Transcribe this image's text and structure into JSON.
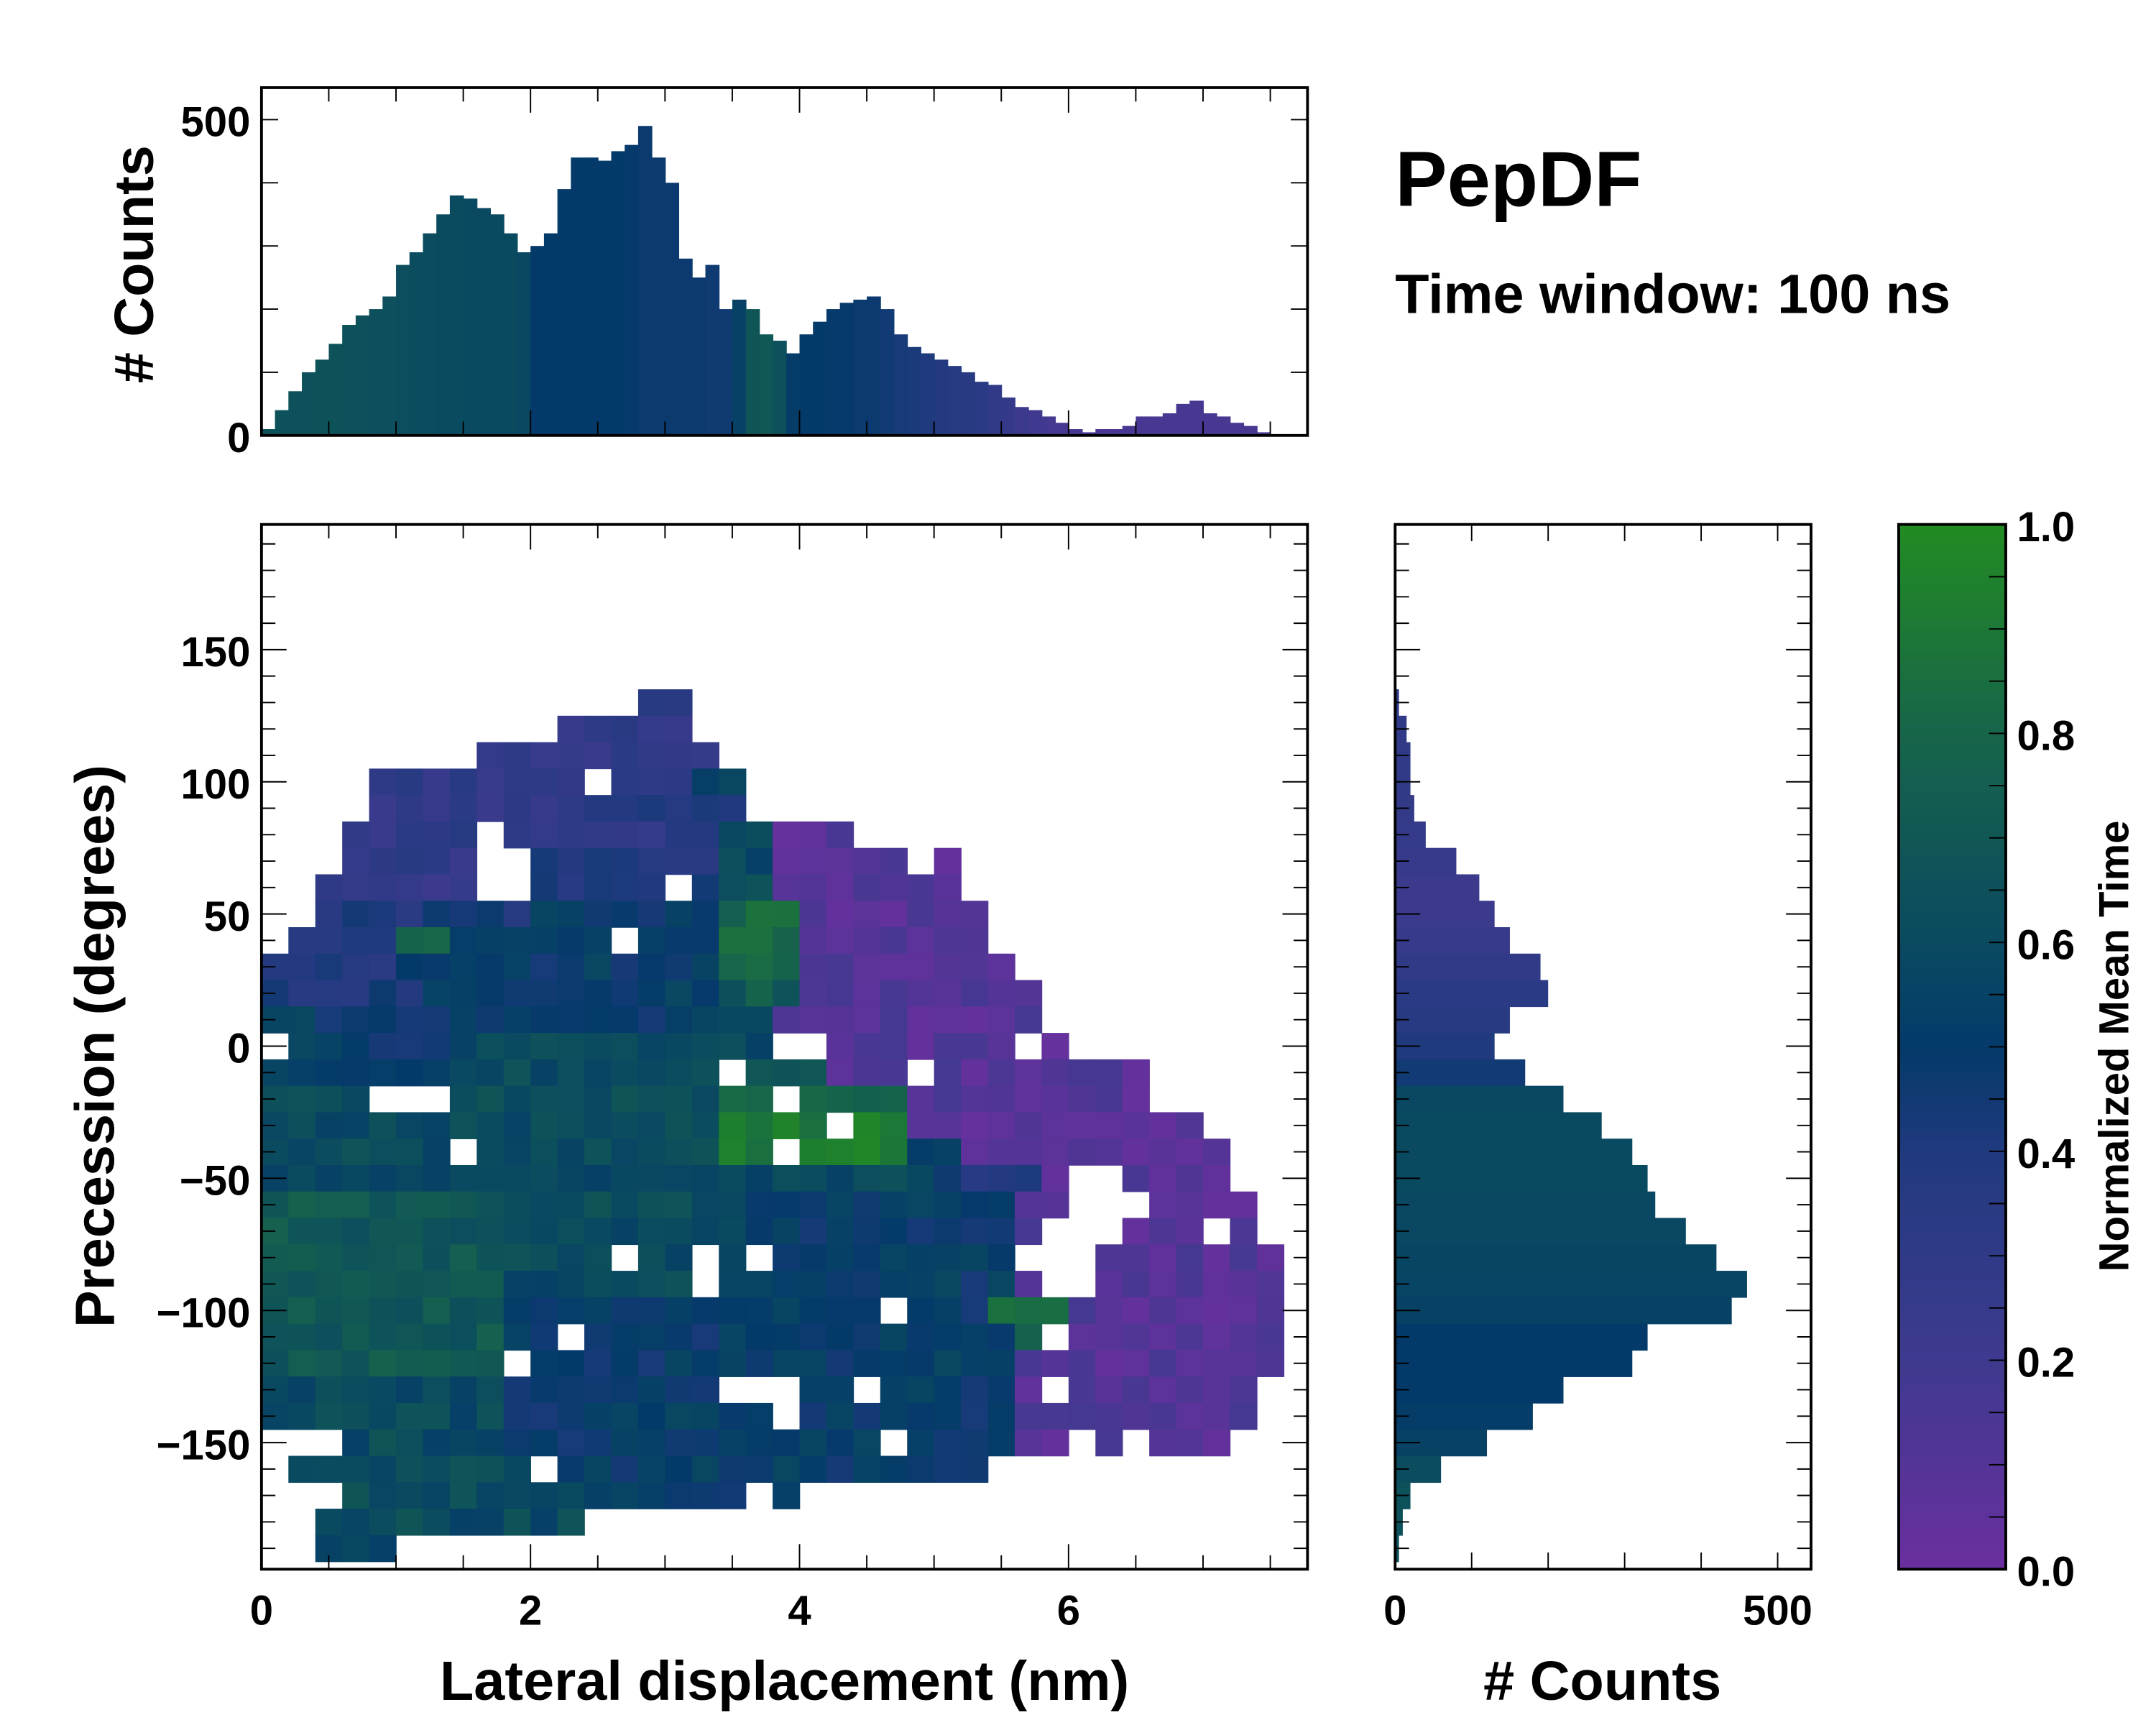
{
  "title": "PepDF",
  "subtitle": "Time window: 100 ns",
  "colors": {
    "colormap": [
      "#6a2f9f",
      "#3f3a8f",
      "#203a7e",
      "#043a6a",
      "#0a4a60",
      "#17654a",
      "#228b22"
    ],
    "colormap_positions": [
      0,
      0.2,
      0.4,
      0.5,
      0.6,
      0.8,
      1.0
    ]
  },
  "chart_data": [
    {
      "name": "top-histogram",
      "type": "bar",
      "ylabel": "# Counts",
      "xlim": [
        0,
        7.78
      ],
      "ylim": [
        0,
        550
      ],
      "yticks": [
        "0",
        "500"
      ],
      "bin_width": 0.1,
      "x": [
        0.0,
        0.1,
        0.2,
        0.3,
        0.4,
        0.5,
        0.6,
        0.7,
        0.8,
        0.9,
        1.0,
        1.1,
        1.2,
        1.3,
        1.4,
        1.5,
        1.6,
        1.7,
        1.8,
        1.9,
        2.0,
        2.1,
        2.2,
        2.3,
        2.4,
        2.5,
        2.6,
        2.7,
        2.8,
        2.9,
        3.0,
        3.1,
        3.2,
        3.3,
        3.4,
        3.5,
        3.6,
        3.7,
        3.8,
        3.9,
        4.0,
        4.1,
        4.2,
        4.3,
        4.4,
        4.5,
        4.6,
        4.7,
        4.8,
        4.9,
        5.0,
        5.1,
        5.2,
        5.3,
        5.4,
        5.5,
        5.6,
        5.7,
        5.8,
        5.9,
        6.0,
        6.1,
        6.2,
        6.3,
        6.4,
        6.5,
        6.6,
        6.7,
        6.8,
        6.9,
        7.0,
        7.1,
        7.2,
        7.3,
        7.4,
        7.5,
        7.6
      ],
      "values": [
        10,
        40,
        70,
        100,
        120,
        145,
        175,
        190,
        200,
        220,
        270,
        290,
        320,
        350,
        380,
        375,
        360,
        350,
        320,
        290,
        300,
        320,
        390,
        440,
        440,
        435,
        450,
        460,
        490,
        440,
        400,
        280,
        250,
        270,
        200,
        215,
        200,
        160,
        150,
        130,
        160,
        180,
        200,
        210,
        215,
        220,
        200,
        160,
        140,
        130,
        120,
        110,
        100,
        85,
        80,
        60,
        45,
        40,
        30,
        20,
        10,
        5,
        10,
        10,
        15,
        30,
        30,
        35,
        50,
        55,
        35,
        30,
        20,
        15,
        5,
        2,
        0
      ],
      "mean_time": [
        0.65,
        0.65,
        0.65,
        0.65,
        0.66,
        0.66,
        0.65,
        0.65,
        0.64,
        0.64,
        0.63,
        0.62,
        0.62,
        0.61,
        0.61,
        0.6,
        0.6,
        0.6,
        0.6,
        0.58,
        0.5,
        0.5,
        0.5,
        0.5,
        0.5,
        0.5,
        0.5,
        0.49,
        0.48,
        0.48,
        0.48,
        0.47,
        0.47,
        0.46,
        0.46,
        0.55,
        0.68,
        0.7,
        0.65,
        0.52,
        0.5,
        0.5,
        0.49,
        0.49,
        0.48,
        0.47,
        0.45,
        0.43,
        0.42,
        0.4,
        0.38,
        0.37,
        0.35,
        0.33,
        0.3,
        0.27,
        0.22,
        0.2,
        0.18,
        0.17,
        0.16,
        0.15,
        0.15,
        0.15,
        0.15,
        0.15,
        0.16,
        0.16,
        0.16,
        0.16,
        0.16,
        0.16,
        0.16,
        0.16,
        0.16,
        0.16,
        0.16
      ]
    },
    {
      "name": "main-heatmap",
      "type": "heatmap",
      "xlabel": "Lateral displacement (nm)",
      "ylabel": "Precession (degrees)",
      "xlim": [
        0,
        7.78
      ],
      "ylim": [
        -198,
        197
      ],
      "xticks": [
        0,
        2,
        4,
        6
      ],
      "yticks": [
        150,
        100,
        50,
        0,
        -50,
        -100,
        -150
      ],
      "ytick_labels": [
        "150",
        "100",
        "50",
        "0",
        "−50",
        "−100",
        "−150"
      ],
      "cell": {
        "dx": 0.2,
        "dy": 10
      },
      "value_scale": 0.1,
      "rows": [
        {
          "y": 130,
          "seg": [
            [
              2.8,
              3.2,
              3
            ]
          ]
        },
        {
          "y": 120,
          "seg": [
            [
              2.2,
              3.2,
              3
            ]
          ]
        },
        {
          "y": 110,
          "seg": [
            [
              1.6,
              3.4,
              3
            ]
          ]
        },
        {
          "y": 100,
          "seg": [
            [
              0.8,
              3.2,
              3
            ],
            [
              3.2,
              3.6,
              5
            ]
          ]
        },
        {
          "y": 90,
          "seg": [
            [
              0.8,
              2.6,
              3
            ],
            [
              2.6,
              3.6,
              4
            ]
          ]
        },
        {
          "y": 80,
          "seg": [
            [
              0.6,
              3.4,
              3
            ],
            [
              3.4,
              3.8,
              6
            ],
            [
              3.8,
              4.4,
              1
            ]
          ]
        },
        {
          "y": 70,
          "seg": [
            [
              0.6,
              1.6,
              3
            ],
            [
              2.0,
              3.4,
              4
            ],
            [
              3.4,
              3.8,
              6
            ],
            [
              3.8,
              5.2,
              1
            ]
          ]
        },
        {
          "y": 60,
          "seg": [
            [
              0.4,
              1.6,
              3
            ],
            [
              2.0,
              3.4,
              4
            ],
            [
              3.4,
              3.8,
              7
            ],
            [
              3.8,
              5.2,
              1
            ]
          ]
        },
        {
          "y": 50,
          "seg": [
            [
              0.4,
              2.0,
              4
            ],
            [
              2.0,
              3.4,
              5
            ],
            [
              3.4,
              4.0,
              8
            ],
            [
              4.0,
              5.4,
              1
            ]
          ]
        },
        {
          "y": 40,
          "seg": [
            [
              0.2,
              1.0,
              4
            ],
            [
              1.0,
              1.4,
              8
            ],
            [
              1.4,
              3.4,
              5
            ],
            [
              3.4,
              4.0,
              8
            ],
            [
              4.0,
              5.4,
              1
            ]
          ]
        },
        {
          "y": 30,
          "seg": [
            [
              0.0,
              1.0,
              4
            ],
            [
              1.0,
              3.4,
              5
            ],
            [
              3.4,
              4.0,
              8
            ],
            [
              4.0,
              5.6,
              1
            ]
          ]
        },
        {
          "y": 20,
          "seg": [
            [
              0.0,
              1.2,
              4
            ],
            [
              1.2,
              3.4,
              5
            ],
            [
              3.4,
              4.0,
              7
            ],
            [
              4.0,
              5.8,
              1
            ]
          ]
        },
        {
          "y": 10,
          "seg": [
            [
              0.0,
              3.4,
              5
            ],
            [
              3.4,
              3.8,
              6
            ],
            [
              3.8,
              5.8,
              1
            ]
          ]
        },
        {
          "y": 0,
          "seg": [
            [
              0.0,
              1.6,
              5
            ],
            [
              1.6,
              3.8,
              6
            ],
            [
              4.2,
              6.0,
              1
            ]
          ]
        },
        {
          "y": -10,
          "seg": [
            [
              0.0,
              1.4,
              5
            ],
            [
              1.4,
              3.4,
              6
            ],
            [
              3.4,
              4.2,
              7
            ],
            [
              4.2,
              6.6,
              1
            ]
          ]
        },
        {
          "y": -20,
          "seg": [
            [
              0.0,
              3.4,
              6
            ],
            [
              3.4,
              4.8,
              8
            ],
            [
              4.8,
              6.6,
              1
            ]
          ]
        },
        {
          "y": -30,
          "seg": [
            [
              0.0,
              3.4,
              6
            ],
            [
              3.4,
              4.8,
              9
            ],
            [
              4.8,
              7.0,
              1
            ]
          ]
        },
        {
          "y": -40,
          "seg": [
            [
              0.0,
              3.4,
              6
            ],
            [
              3.4,
              4.8,
              9
            ],
            [
              4.8,
              5.2,
              5
            ],
            [
              5.2,
              7.2,
              1
            ]
          ]
        },
        {
          "y": -50,
          "seg": [
            [
              0.0,
              5.0,
              6
            ],
            [
              5.0,
              5.8,
              4
            ],
            [
              5.8,
              6.0,
              1
            ],
            [
              6.4,
              7.2,
              1
            ]
          ]
        },
        {
          "y": -60,
          "seg": [
            [
              0.0,
              1.8,
              7
            ],
            [
              1.8,
              3.6,
              6
            ],
            [
              3.6,
              5.6,
              5
            ],
            [
              5.6,
              6.0,
              1
            ],
            [
              6.4,
              7.4,
              1
            ]
          ]
        },
        {
          "y": -70,
          "seg": [
            [
              0.0,
              1.8,
              7
            ],
            [
              1.8,
              3.6,
              6
            ],
            [
              3.6,
              5.6,
              5
            ],
            [
              5.6,
              5.8,
              1
            ],
            [
              6.4,
              7.4,
              1
            ]
          ]
        },
        {
          "y": -80,
          "seg": [
            [
              0.0,
              1.8,
              7
            ],
            [
              1.8,
              3.6,
              6
            ],
            [
              3.6,
              5.6,
              5
            ],
            [
              6.2,
              7.6,
              1
            ]
          ]
        },
        {
          "y": -90,
          "seg": [
            [
              0.0,
              1.8,
              7
            ],
            [
              1.8,
              3.6,
              6
            ],
            [
              3.6,
              5.6,
              5
            ],
            [
              5.6,
              5.8,
              1
            ],
            [
              6.2,
              7.6,
              1
            ]
          ]
        },
        {
          "y": -100,
          "seg": [
            [
              0.0,
              1.8,
              7
            ],
            [
              1.8,
              5.4,
              5
            ],
            [
              5.4,
              6.0,
              9
            ],
            [
              6.0,
              7.6,
              1
            ]
          ]
        },
        {
          "y": -110,
          "seg": [
            [
              0.0,
              1.8,
              7
            ],
            [
              1.8,
              5.6,
              5
            ],
            [
              5.6,
              6.0,
              8
            ],
            [
              6.0,
              7.6,
              1
            ]
          ]
        },
        {
          "y": -120,
          "seg": [
            [
              0.0,
              1.8,
              7
            ],
            [
              1.8,
              5.6,
              5
            ],
            [
              5.6,
              7.6,
              1
            ]
          ]
        },
        {
          "y": -130,
          "seg": [
            [
              0.0,
              1.8,
              6
            ],
            [
              1.8,
              5.6,
              5
            ],
            [
              5.6,
              7.4,
              1
            ]
          ]
        },
        {
          "y": -140,
          "seg": [
            [
              0.0,
              1.8,
              6
            ],
            [
              1.8,
              5.6,
              5
            ],
            [
              5.6,
              7.4,
              1
            ]
          ]
        },
        {
          "y": -150,
          "seg": [
            [
              0.2,
              1.8,
              6
            ],
            [
              1.8,
              5.6,
              5
            ],
            [
              5.6,
              6.0,
              1
            ],
            [
              6.2,
              7.2,
              1
            ]
          ]
        },
        {
          "y": -160,
          "seg": [
            [
              0.2,
              2.0,
              6
            ],
            [
              2.0,
              5.4,
              5
            ]
          ]
        },
        {
          "y": -170,
          "seg": [
            [
              0.4,
              2.4,
              6
            ],
            [
              2.4,
              4.0,
              5
            ]
          ]
        },
        {
          "y": -180,
          "seg": [
            [
              0.4,
              2.4,
              6
            ]
          ]
        },
        {
          "y": -190,
          "seg": [
            [
              0.4,
              1.0,
              6
            ]
          ]
        }
      ]
    },
    {
      "name": "right-histogram",
      "type": "bar",
      "orientation": "horizontal",
      "xlabel": "# Counts",
      "xlim": [
        0,
        544
      ],
      "xticks": [
        "0",
        "500"
      ],
      "bin_width": 10,
      "y": [
        130,
        120,
        110,
        100,
        90,
        80,
        70,
        60,
        50,
        40,
        30,
        20,
        10,
        0,
        -10,
        -20,
        -30,
        -40,
        -50,
        -60,
        -70,
        -80,
        -90,
        -100,
        -110,
        -120,
        -130,
        -140,
        -150,
        -160,
        -170,
        -180,
        -190
      ],
      "values": [
        5,
        15,
        20,
        20,
        25,
        40,
        80,
        110,
        130,
        150,
        190,
        200,
        150,
        130,
        170,
        220,
        270,
        310,
        330,
        340,
        380,
        420,
        460,
        440,
        330,
        310,
        220,
        180,
        120,
        60,
        20,
        10,
        5
      ],
      "mean_time": [
        0.3,
        0.3,
        0.3,
        0.3,
        0.28,
        0.27,
        0.25,
        0.22,
        0.22,
        0.25,
        0.3,
        0.33,
        0.35,
        0.4,
        0.45,
        0.58,
        0.6,
        0.6,
        0.6,
        0.58,
        0.58,
        0.57,
        0.56,
        0.55,
        0.5,
        0.5,
        0.5,
        0.52,
        0.55,
        0.62,
        0.65,
        0.65,
        0.65
      ]
    },
    {
      "name": "colorbar",
      "type": "colorbar",
      "label": "Normalized Mean Time",
      "range": [
        0,
        1
      ],
      "ticks": [
        "0.0",
        "0.2",
        "0.4",
        "0.6",
        "0.8",
        "1.0"
      ]
    }
  ]
}
